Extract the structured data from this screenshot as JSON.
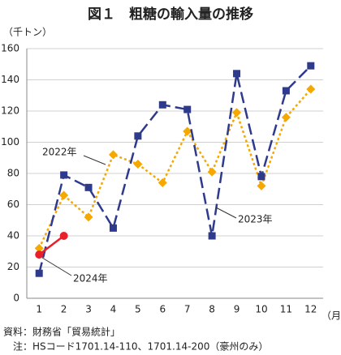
{
  "chart_data": {
    "type": "line",
    "title": "図１　粗糖の輸入量の推移",
    "y_unit": "（千トン）",
    "x_unit": "（月）",
    "source": "資料：財務省「貿易統計」",
    "note": "注：HSコード1701.14-110、1701.14-200（豪州のみ）",
    "categories": [
      "1",
      "2",
      "3",
      "4",
      "5",
      "6",
      "7",
      "8",
      "9",
      "10",
      "11",
      "12"
    ],
    "ylim": [
      0,
      160
    ],
    "yticks": [
      0,
      20,
      40,
      60,
      80,
      100,
      120,
      140,
      160
    ],
    "grid": true,
    "series": [
      {
        "name": "2022年",
        "color": "#f5a800",
        "marker": "diamond",
        "dash": "3,3",
        "values": [
          32,
          66,
          52,
          92,
          86,
          74,
          107,
          81,
          119,
          72,
          116,
          134
        ]
      },
      {
        "name": "2023年",
        "color": "#2e3a8c",
        "marker": "square",
        "dash": "14,6",
        "values": [
          16,
          79,
          71,
          45,
          104,
          124,
          121,
          40,
          144,
          78,
          133,
          149
        ]
      },
      {
        "name": "2024年",
        "color": "#e8202a",
        "marker": "circle",
        "dash": "none",
        "values": [
          28,
          40,
          null,
          null,
          null,
          null,
          null,
          null,
          null,
          null,
          null,
          null
        ]
      }
    ]
  }
}
